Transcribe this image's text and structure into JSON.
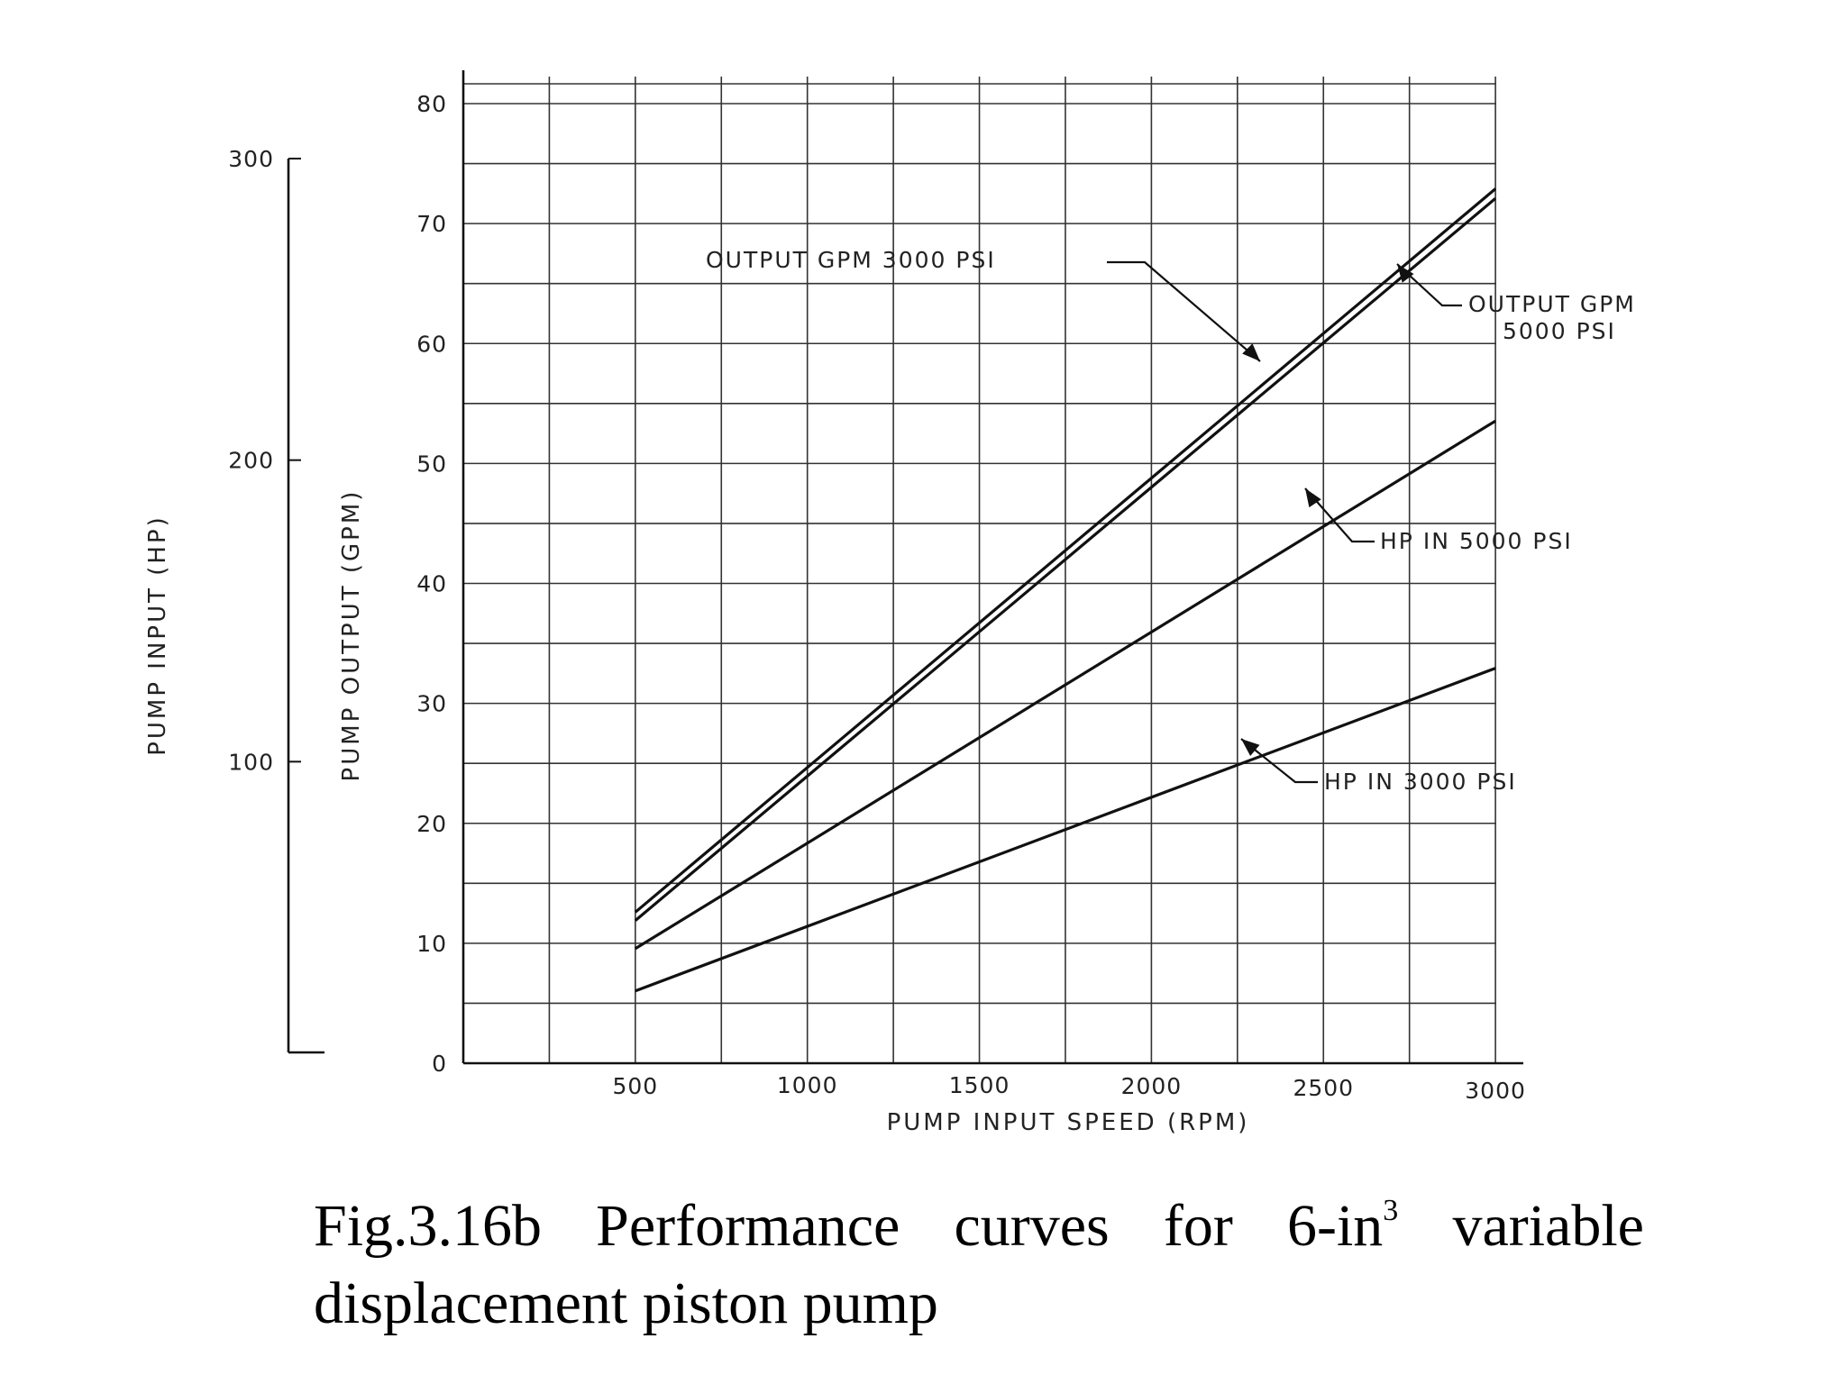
{
  "chart_data": {
    "type": "line",
    "x": [
      500,
      3000
    ],
    "xlabel": "PUMP INPUT SPEED (RPM)",
    "x_ticks": [
      "500",
      "1000",
      "1500",
      "2000",
      "2500",
      "3000"
    ],
    "xlim": [
      0,
      3000
    ],
    "ylabel": "PUMP OUTPUT (GPM)",
    "y_ticks": [
      "0",
      "10",
      "20",
      "30",
      "40",
      "50",
      "60",
      "70",
      "80"
    ],
    "ylim": [
      0,
      80
    ],
    "y2label": "PUMP INPUT (HP)",
    "y2_ticks": [
      "100",
      "200",
      "300"
    ],
    "y2lim": [
      0,
      300
    ],
    "grid": true,
    "series": [
      {
        "name": "OUTPUT GPM 3000 PSI",
        "axis": "gpm",
        "values": [
          12.6,
          72.9
        ]
      },
      {
        "name": "OUTPUT GPM 5000 PSI",
        "axis": "gpm",
        "values": [
          11.9,
          72.1
        ]
      },
      {
        "name": "HP IN 5000 PSI",
        "axis": "hp",
        "values": [
          38,
          213
        ]
      },
      {
        "name": "HP IN 3000 PSI",
        "axis": "hp",
        "values": [
          24,
          131
        ]
      }
    ],
    "annotations": [
      {
        "lines": [
          "OUTPUT GPM  3000 PSI"
        ]
      },
      {
        "lines": [
          "OUTPUT GPM",
          "5000 PSI"
        ]
      },
      {
        "lines": [
          "HP IN  5000 PSI"
        ]
      },
      {
        "lines": [
          "HP IN  3000 PSI"
        ]
      }
    ]
  },
  "caption": {
    "main": "Fig.3.16b  Performance  curves  for  6-in",
    "superscript": "3",
    "rest": " variable displacement piston pump"
  }
}
